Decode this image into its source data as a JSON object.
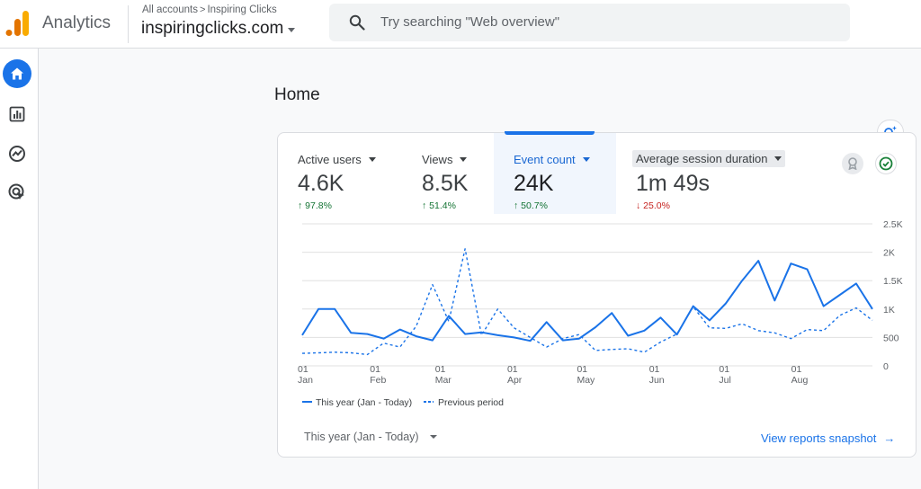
{
  "app": {
    "name": "Analytics"
  },
  "breadcrumb": {
    "all_accounts": "All accounts",
    "separator": ">",
    "account": "Inspiring Clicks"
  },
  "property": {
    "name": "inspiringclicks.com"
  },
  "search": {
    "placeholder": "Try searching \"Web overview\""
  },
  "rail": {
    "items": [
      "home-icon",
      "reports-icon",
      "explore-icon",
      "advertising-icon"
    ],
    "active": "home-icon"
  },
  "page": {
    "title": "Home"
  },
  "metrics": [
    {
      "label": "Active users",
      "value": "4.6K",
      "change": "97.8%",
      "direction": "up"
    },
    {
      "label": "Views",
      "value": "8.5K",
      "change": "51.4%",
      "direction": "up"
    },
    {
      "label": "Event count",
      "value": "24K",
      "change": "50.7%",
      "direction": "up",
      "selected": true
    },
    {
      "label": "Average session duration",
      "value": "1m 49s",
      "change": "25.0%",
      "direction": "down"
    }
  ],
  "colors": {
    "accent": "#1a73e8",
    "up": "#137333",
    "down": "#c5221f",
    "grid": "#e0e0e0"
  },
  "chart_data": {
    "type": "line",
    "y_ticks": [
      "0",
      "500",
      "1K",
      "1.5K",
      "2K",
      "2.5K"
    ],
    "ylim": [
      0,
      2500
    ],
    "x_ticks": [
      {
        "day": "01",
        "month": "Jan",
        "week": 0
      },
      {
        "day": "01",
        "month": "Feb",
        "week": 4.43
      },
      {
        "day": "01",
        "month": "Mar",
        "week": 8.43
      },
      {
        "day": "01",
        "month": "Apr",
        "week": 12.86
      },
      {
        "day": "01",
        "month": "May",
        "week": 17.14
      },
      {
        "day": "01",
        "month": "Jun",
        "week": 21.57
      },
      {
        "day": "01",
        "month": "Jul",
        "week": 25.86
      },
      {
        "day": "01",
        "month": "Aug",
        "week": 30.29
      }
    ],
    "series": [
      {
        "name": "This year (Jan - Today)",
        "style": "solid",
        "values": [
          540,
          1000,
          1000,
          580,
          560,
          480,
          640,
          520,
          450,
          880,
          560,
          590,
          540,
          500,
          440,
          770,
          450,
          480,
          680,
          930,
          530,
          620,
          850,
          550,
          1050,
          800,
          1100,
          1500,
          1850,
          1150,
          1800,
          1700,
          1050,
          1250,
          1450,
          1000
        ]
      },
      {
        "name": "Previous period",
        "style": "dashed",
        "values": [
          220,
          230,
          240,
          230,
          200,
          400,
          330,
          700,
          1430,
          780,
          2060,
          540,
          1000,
          670,
          500,
          330,
          480,
          550,
          270,
          290,
          300,
          240,
          420,
          560,
          1040,
          670,
          660,
          740,
          620,
          580,
          480,
          640,
          620,
          890,
          1020,
          800
        ]
      }
    ],
    "legend": [
      "This year (Jan - Today)",
      "Previous period"
    ],
    "legend_position": "bottom-left"
  },
  "footer": {
    "date_range": "This year (Jan - Today)",
    "view_link": "View reports snapshot",
    "view_arrow": "→"
  }
}
